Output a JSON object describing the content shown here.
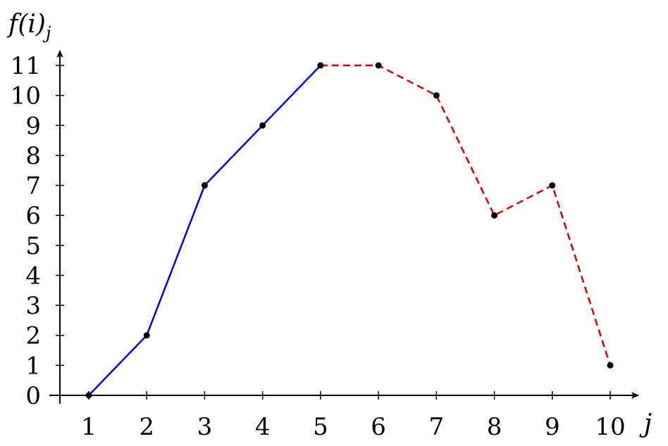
{
  "chart_data": {
    "type": "line",
    "title": "",
    "xlabel": "j",
    "ylabel": "f(i)",
    "ylabel_sub": "j",
    "xlim": [
      0.5,
      10.5
    ],
    "ylim": [
      0,
      11
    ],
    "x_ticks": [
      1,
      2,
      3,
      4,
      5,
      6,
      7,
      8,
      9,
      10
    ],
    "y_ticks": [
      0,
      1,
      2,
      3,
      4,
      5,
      6,
      7,
      8,
      9,
      10,
      11
    ],
    "grid": false,
    "series": [
      {
        "color": "#0000cc",
        "line_style": "solid",
        "x": [
          1,
          2,
          3,
          4,
          5
        ],
        "y": [
          0,
          2,
          7,
          9,
          11
        ]
      },
      {
        "color": "#cc0000",
        "line_style": "dashed",
        "x": [
          5,
          6,
          7,
          8,
          9,
          10
        ],
        "y": [
          11,
          11,
          10,
          6,
          7,
          1
        ]
      }
    ],
    "points": {
      "x": [
        1,
        2,
        3,
        4,
        5,
        6,
        7,
        8,
        9,
        10
      ],
      "y": [
        0,
        2,
        7,
        9,
        11,
        11,
        10,
        6,
        7,
        1
      ],
      "color": "#000000"
    }
  }
}
